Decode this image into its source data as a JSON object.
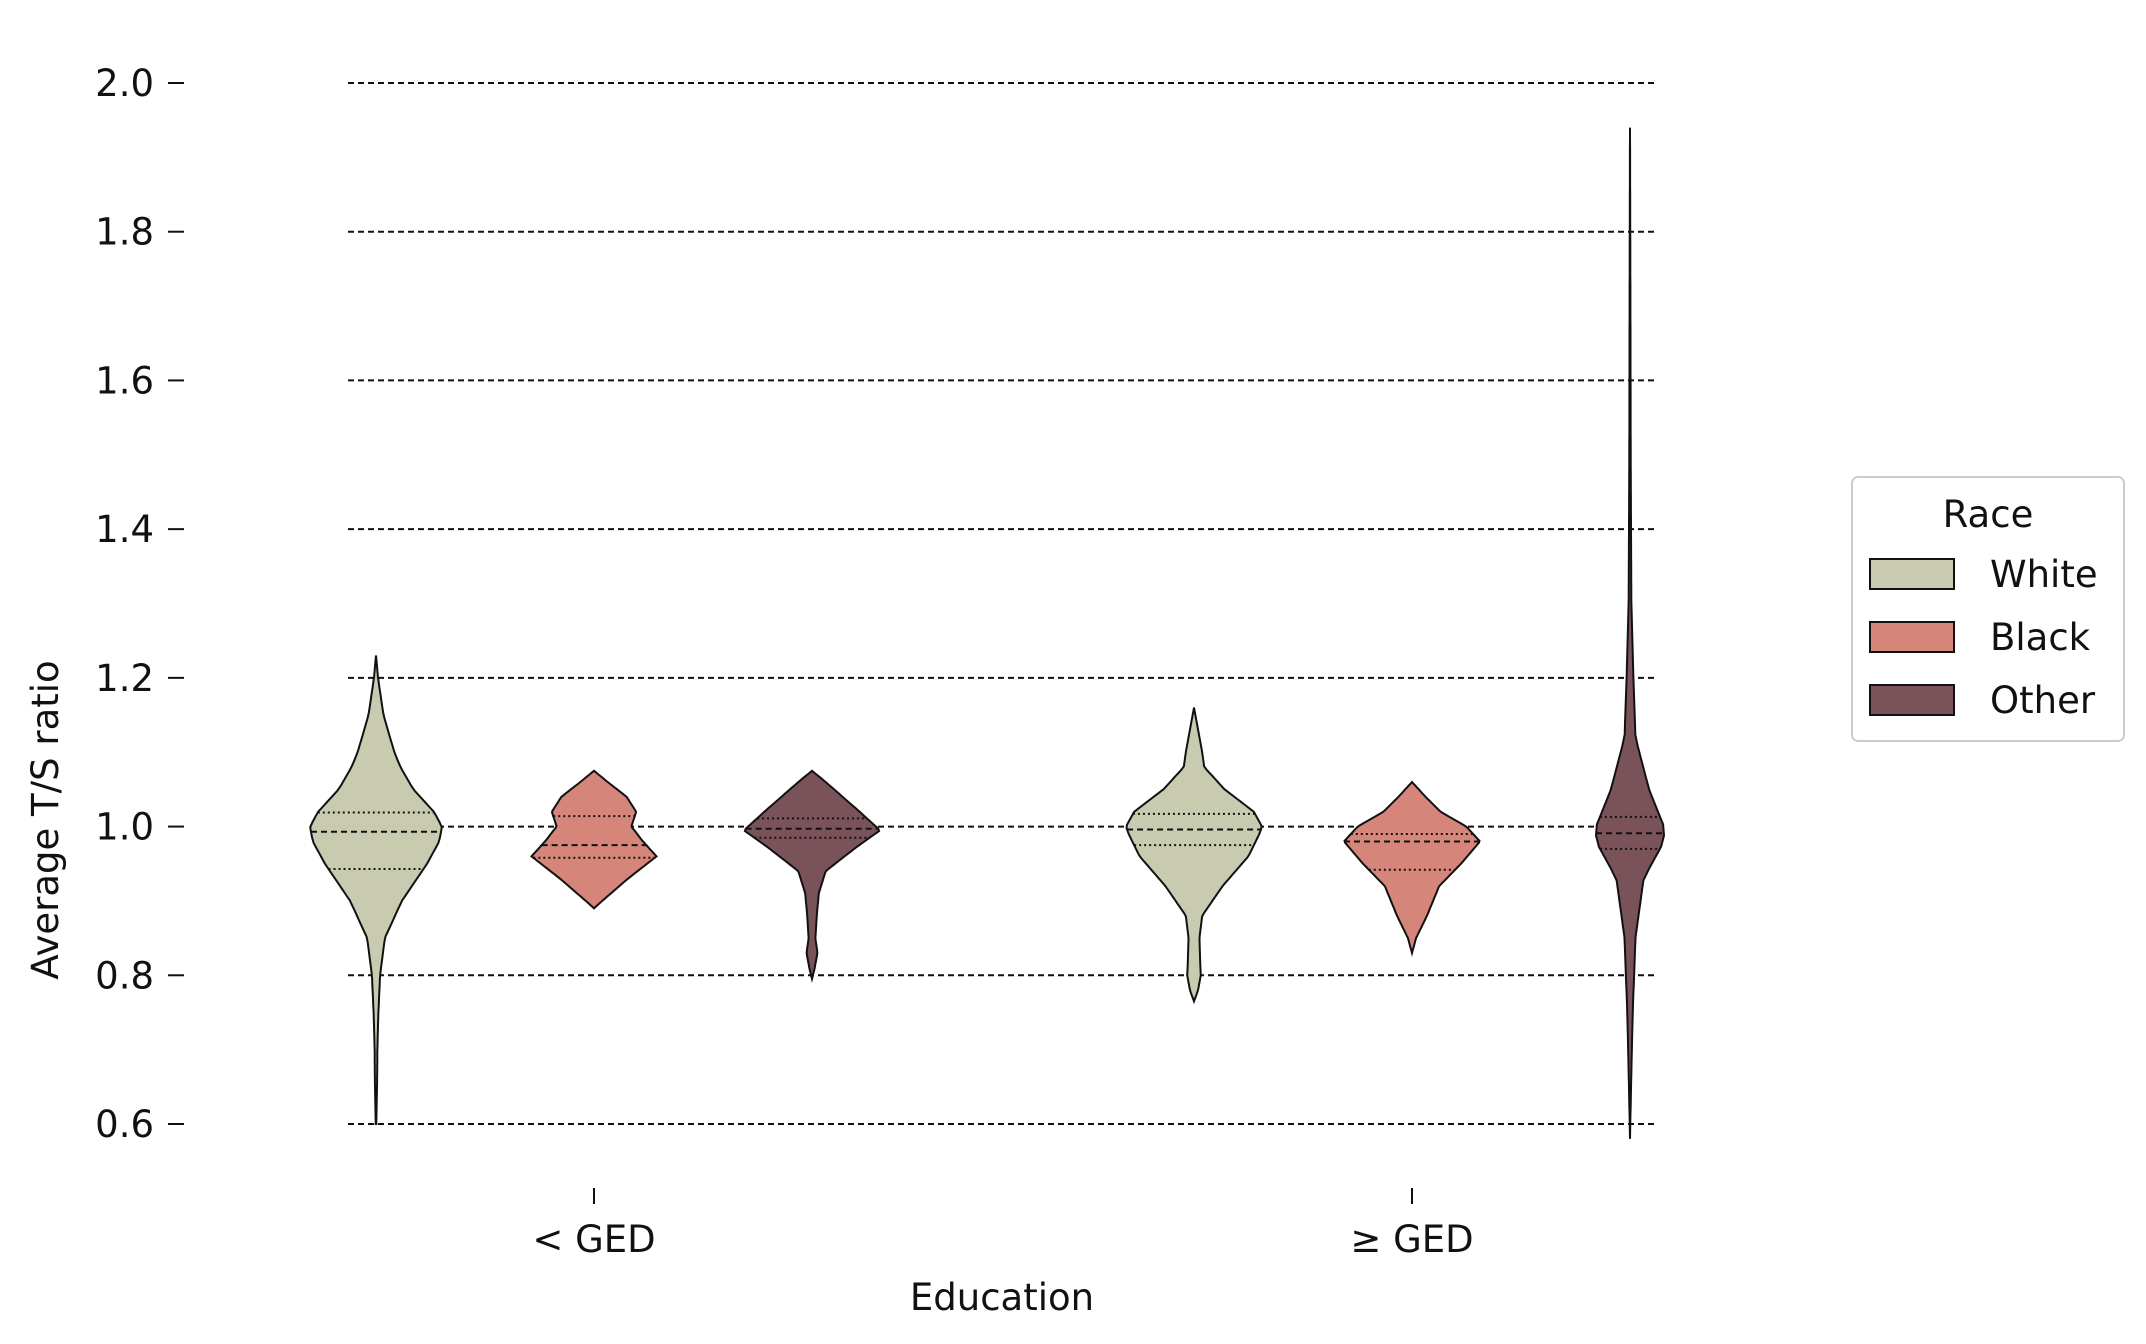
{
  "chart_data": {
    "type": "violin",
    "title": "",
    "xlabel": "Education",
    "ylabel": "Average T/S ratio",
    "ylim": [
      0.6,
      2.0
    ],
    "yticks": [
      "0.6",
      "0.8",
      "1.0",
      "1.2",
      "1.4",
      "1.6",
      "1.8",
      "2.0"
    ],
    "grid": "horizontal dashed",
    "categories": [
      "< GED",
      "≥  GED"
    ],
    "legend": {
      "title": "Race",
      "placement": "center-right",
      "entries": [
        "White",
        "Black",
        "Other"
      ]
    },
    "series": [
      {
        "name": "White",
        "color": "#c8cbb0",
        "groups": [
          {
            "category": "< GED",
            "min": 0.6,
            "max": 1.23,
            "q1": 0.943,
            "median": 0.993,
            "q3": 1.019,
            "profile": [
              [
                0.6,
                0.005
              ],
              [
                0.65,
                0.015
              ],
              [
                0.7,
                0.02
              ],
              [
                0.75,
                0.035
              ],
              [
                0.8,
                0.06
              ],
              [
                0.85,
                0.13
              ],
              [
                0.9,
                0.38
              ],
              [
                0.95,
                0.75
              ],
              [
                0.98,
                0.93
              ],
              [
                1.0,
                0.97
              ],
              [
                1.02,
                0.85
              ],
              [
                1.05,
                0.55
              ],
              [
                1.08,
                0.36
              ],
              [
                1.1,
                0.27
              ],
              [
                1.15,
                0.11
              ],
              [
                1.2,
                0.03
              ],
              [
                1.23,
                0.0
              ]
            ]
          },
          {
            "category": "≥  GED",
            "min": 0.765,
            "max": 1.16,
            "q1": 0.975,
            "median": 0.996,
            "q3": 1.017,
            "profile": [
              [
                0.765,
                0.0
              ],
              [
                0.78,
                0.06
              ],
              [
                0.8,
                0.1
              ],
              [
                0.82,
                0.09
              ],
              [
                0.85,
                0.08
              ],
              [
                0.88,
                0.12
              ],
              [
                0.92,
                0.42
              ],
              [
                0.96,
                0.8
              ],
              [
                0.99,
                0.96
              ],
              [
                1.0,
                1.0
              ],
              [
                1.02,
                0.88
              ],
              [
                1.05,
                0.45
              ],
              [
                1.08,
                0.15
              ],
              [
                1.1,
                0.12
              ],
              [
                1.13,
                0.06
              ],
              [
                1.16,
                0.0
              ]
            ]
          }
        ]
      },
      {
        "name": "Black",
        "color": "#d5857a",
        "groups": [
          {
            "category": "< GED",
            "min": 0.89,
            "max": 1.075,
            "q1": 0.958,
            "median": 0.975,
            "q3": 1.014,
            "profile": [
              [
                0.89,
                0.0
              ],
              [
                0.9,
                0.12
              ],
              [
                0.93,
                0.5
              ],
              [
                0.96,
                0.92
              ],
              [
                0.98,
                0.72
              ],
              [
                1.0,
                0.55
              ],
              [
                1.02,
                0.62
              ],
              [
                1.04,
                0.48
              ],
              [
                1.06,
                0.2
              ],
              [
                1.075,
                0.0
              ]
            ]
          },
          {
            "category": "≥  GED",
            "min": 0.83,
            "max": 1.06,
            "q1": 0.942,
            "median": 0.98,
            "q3": 0.99,
            "profile": [
              [
                0.83,
                0.0
              ],
              [
                0.85,
                0.06
              ],
              [
                0.88,
                0.22
              ],
              [
                0.92,
                0.4
              ],
              [
                0.95,
                0.72
              ],
              [
                0.98,
                1.0
              ],
              [
                1.0,
                0.8
              ],
              [
                1.02,
                0.42
              ],
              [
                1.04,
                0.2
              ],
              [
                1.06,
                0.0
              ]
            ]
          }
        ]
      },
      {
        "name": "Other",
        "color": "#7a535a",
        "groups": [
          {
            "category": "< GED",
            "min": 0.795,
            "max": 1.075,
            "q1": 0.985,
            "median": 0.997,
            "q3": 1.011,
            "profile": [
              [
                0.795,
                0.0
              ],
              [
                0.81,
                0.04
              ],
              [
                0.83,
                0.08
              ],
              [
                0.85,
                0.05
              ],
              [
                0.88,
                0.07
              ],
              [
                0.91,
                0.1
              ],
              [
                0.94,
                0.2
              ],
              [
                0.97,
                0.62
              ],
              [
                0.995,
                1.0
              ],
              [
                1.02,
                0.7
              ],
              [
                1.04,
                0.45
              ],
              [
                1.06,
                0.2
              ],
              [
                1.075,
                0.0
              ]
            ]
          },
          {
            "category": "≥  GED",
            "min": 0.58,
            "max": 1.94,
            "q1": 0.97,
            "median": 0.991,
            "q3": 1.013,
            "profile": [
              [
                0.58,
                0.0
              ],
              [
                0.65,
                0.015
              ],
              [
                0.75,
                0.04
              ],
              [
                0.85,
                0.08
              ],
              [
                0.93,
                0.2
              ],
              [
                0.98,
                0.5
              ],
              [
                1.0,
                0.5
              ],
              [
                1.05,
                0.28
              ],
              [
                1.12,
                0.08
              ],
              [
                1.2,
                0.05
              ],
              [
                1.3,
                0.02
              ],
              [
                1.5,
                0.01
              ],
              [
                1.7,
                0.006
              ],
              [
                1.94,
                0.0
              ]
            ]
          }
        ]
      }
    ]
  }
}
